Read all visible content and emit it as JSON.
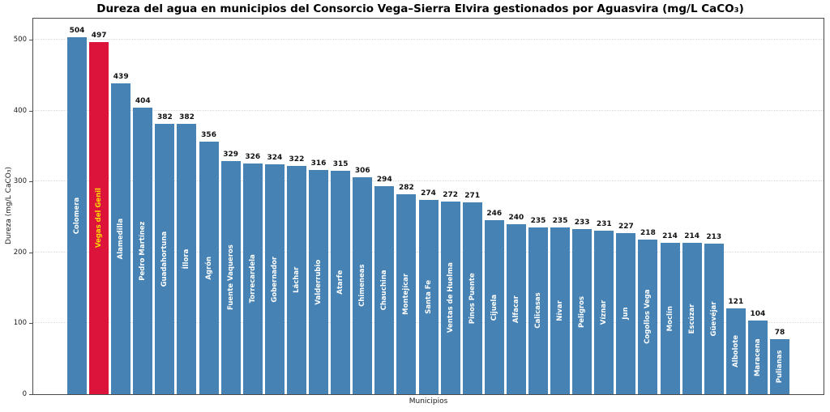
{
  "chart_data": {
    "type": "bar",
    "title": "Dureza del agua en municipios del Consorcio Vega–Sierra Elvira gestionados por Aguasvira (mg/L CaCO₃)",
    "xlabel": "Municipios",
    "ylabel": "Dureza (mg/L CaCO₃)",
    "ylim": [
      0,
      530
    ],
    "yticks": [
      0,
      100,
      200,
      300,
      400,
      500
    ],
    "grid": "horizontal dotted",
    "legend_position": "none",
    "categories": [
      "Colomera",
      "Vegas del Genil",
      "Alamedilla",
      "Pedro Martínez",
      "Guadahortuna",
      "Íllora",
      "Agrón",
      "Fuente Vaqueros",
      "Torrecardela",
      "Gobernador",
      "Láchar",
      "Valderrubio",
      "Atarfe",
      "Chimeneas",
      "Chauchina",
      "Montejícar",
      "Santa Fe",
      "Ventas de Huelma",
      "Pinos Puente",
      "Cijuela",
      "Alfacar",
      "Calicasas",
      "Nívar",
      "Peligros",
      "Víznar",
      "Jun",
      "Cogollos Vega",
      "Moclín",
      "Escúzar",
      "Güevéjar",
      "Albolote",
      "Maracena",
      "Pulianas"
    ],
    "values": [
      504,
      497,
      439,
      404,
      382,
      382,
      356,
      329,
      326,
      324,
      322,
      316,
      315,
      306,
      294,
      282,
      274,
      272,
      271,
      246,
      240,
      235,
      235,
      233,
      231,
      227,
      218,
      214,
      214,
      213,
      121,
      104,
      78
    ],
    "highlight_category": "Vegas del Genil",
    "highlight_index": 1,
    "colors": {
      "bar": "#4682B4",
      "highlight_bar": "#DC143C",
      "category_label": "#FFFFFF",
      "highlight_category_label": "#FFD700",
      "value_label": "#111111",
      "gridline": "#d9d9d9",
      "spine": "#4a4a4a"
    }
  }
}
